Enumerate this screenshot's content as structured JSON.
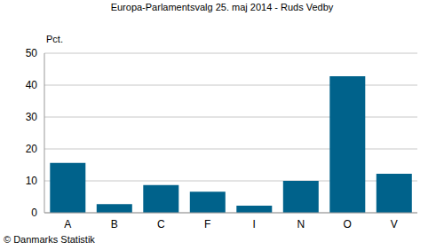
{
  "chart_data": {
    "type": "bar",
    "title": "Europa-Parlamentsvalg 25. maj 2014 - Ruds Vedby",
    "ylabel": "Pct.",
    "annotations": [
      "© Danmarks Statistik"
    ],
    "categories": [
      "A",
      "B",
      "C",
      "F",
      "I",
      "N",
      "O",
      "V"
    ],
    "values": [
      15.6,
      2.7,
      8.7,
      6.6,
      2.2,
      10.0,
      42.8,
      12.2
    ],
    "color": "#00628b",
    "ylim": [
      0,
      50
    ],
    "yticks": [
      0,
      10,
      20,
      30,
      40,
      50
    ],
    "grid": true
  }
}
